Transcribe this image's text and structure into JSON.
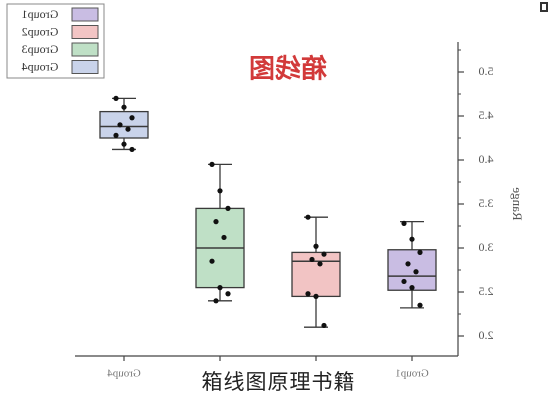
{
  "chart_data": {
    "type": "box",
    "title": "箱线图",
    "ylabel": "Range",
    "ylim": [
      1.9,
      5.3
    ],
    "yticks": [
      {
        "value": 2.0,
        "label": "2.0"
      },
      {
        "value": 2.5,
        "label": "2.5"
      },
      {
        "value": 3.0,
        "label": "3.0"
      },
      {
        "value": 3.5,
        "label": "3.5"
      },
      {
        "value": 4.0,
        "label": "4.0"
      },
      {
        "value": 4.5,
        "label": "4.5"
      },
      {
        "value": 5.0,
        "label": "5.0"
      }
    ],
    "mirrored": true,
    "legend_position": "top-left (image top-right, mirrored)",
    "categories": [
      "Group1",
      "Group2",
      "Group3",
      "Group4"
    ],
    "x_tick_labels_visible": [
      "Group1",
      "Group4"
    ],
    "groups": [
      {
        "name": "Group1",
        "color": "#c9bde3",
        "edge": "#3a3a3a",
        "whisker_low": 2.32,
        "q1": 2.52,
        "median": 2.68,
        "q3": 2.98,
        "whisker_high": 3.3,
        "points": [
          3.28,
          3.1,
          2.95,
          2.82,
          2.73,
          2.62,
          2.55,
          2.35
        ]
      },
      {
        "name": "Group2",
        "color": "#f2c4c4",
        "edge": "#3a3a3a",
        "whisker_low": 2.1,
        "q1": 2.45,
        "median": 2.85,
        "q3": 2.95,
        "whisker_high": 3.35,
        "points": [
          3.35,
          3.02,
          2.93,
          2.87,
          2.82,
          2.48,
          2.45,
          2.12
        ]
      },
      {
        "name": "Group3",
        "color": "#bfe0c6",
        "edge": "#3a3a3a",
        "whisker_low": 2.4,
        "q1": 2.55,
        "median": 3.0,
        "q3": 3.45,
        "whisker_high": 3.95,
        "points": [
          3.95,
          3.65,
          3.45,
          3.3,
          3.12,
          2.85,
          2.55,
          2.48,
          2.4
        ]
      },
      {
        "name": "Group4",
        "color": "#c9d3ea",
        "edge": "#3a3a3a",
        "whisker_low": 4.12,
        "q1": 4.25,
        "median": 4.38,
        "q3": 4.55,
        "whisker_high": 4.7,
        "points": [
          4.7,
          4.6,
          4.48,
          4.4,
          4.35,
          4.28,
          4.18,
          4.12
        ]
      }
    ]
  },
  "legend": {
    "items": [
      {
        "label": "Group1",
        "color": "#c9bde3"
      },
      {
        "label": "Group2",
        "color": "#f2c4c4"
      },
      {
        "label": "Group3",
        "color": "#bfe0c6"
      },
      {
        "label": "Group4",
        "color": "#c9d3ea"
      }
    ]
  },
  "caption": "箱线图原理书籍",
  "title_color": "#d23a3a"
}
